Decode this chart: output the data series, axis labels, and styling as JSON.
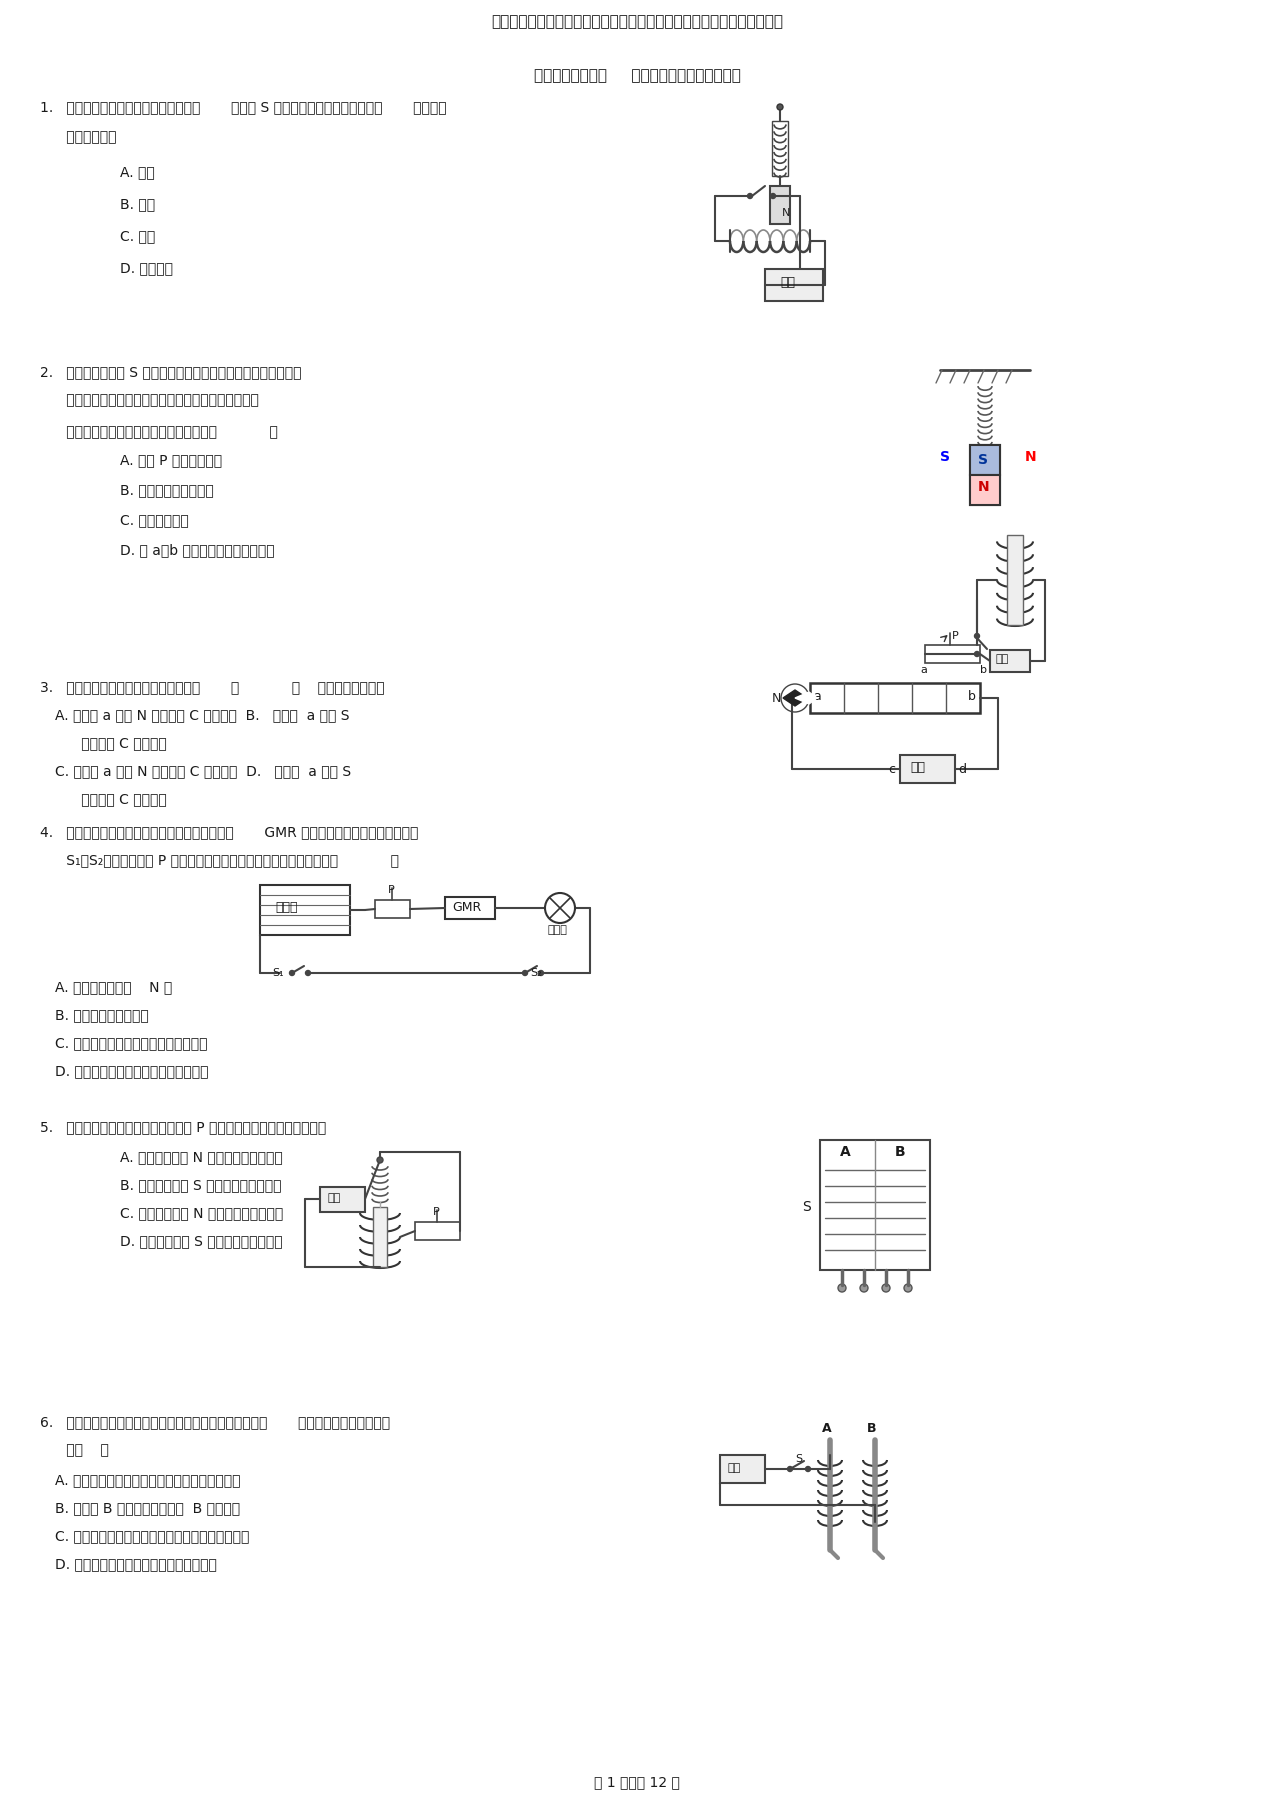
{
  "title": "江苏省苏科版初三物理下学期第十六章电磁转换汇编之安培定则相关习题",
  "subtitle": "第十六章电磁转换     汇编之安培定那么相关习题",
  "page_footer": "第 1 页，共 12 页",
  "bg_color": "#ffffff",
  "q1_line1": "1.   如图弹簧测力计下端吊一条形磁铁，       当开关 S 闭合时弹簧测力计示数变大，       那么电源",
  "q1_line2": "      的正极是（）",
  "q1_opts": [
    "A. 左端",
    "B. 右端",
    "C. 不变",
    "D. 无法判断"
  ],
  "q2_line1": "2.   如下图，上端为 S 极的条形磁体悬挂在一轻弹簧上。闭合开关",
  "q2_line2": "      条形磁体处于静止状态后，下端位于螺线管的上方。",
  "q2_line3": "      以下措施可以使条形磁体向上运动的是（            ）",
  "q2_opts": [
    "A. 滑片 P 向右缓慢移动",
    "B. 在螺线管中插入铁芯",
    "C. 增大电源电压",
    "D. 将 a、b 间电源的正负极对换位置"
  ],
  "q3_line1": "3.   通电螺旋管旁的小磁针静止如下图，       （            ）    判断正确的选项是",
  "q3_opts": [
    "A. 螺旋管 a 端为 N 极，电源 C 端为正极  B.   螺旋管  a 端为 S",
    "      极，电源 C 端为负极",
    "C. 螺旋管 a 端为 N 极，电源 C 端为负极  D.   螺旋管  a 端为 S",
    "      极，电源 C 端为正极"
  ],
  "q4_line1": "4.   如图是说明巨磁电阻特性的原理示意图，其中       GMR 是巨磁电阻。实验发现，当开关",
  "q4_line2": "      S₁、S₂均闭合且滑片 P 向左滑动的过程中，指示灯明显变亮。那么（            ）",
  "q4_opts": [
    "A. 电磁铁的右端为    N 极",
    "B. 流过灯泡的电流减小",
    "C. 巨磁电阻的阻值随磁场的增强而增大",
    "D. 巨磁电阻的阻值随磁场的增强而减小"
  ],
  "q5_line1": "5.   如下图，闭合电路开关后，将滑片 P 向左移动时弹簧缩短，那么（）",
  "q5_opts": [
    "A. 螺线管上端是 N 极，电源右端是正极",
    "B. 螺线管上端是 S 极，电源右端是正极",
    "C. 螺线管上端是 N 极，电源左端是正极",
    "D. 螺线管上端是 S 极，电源左端是正极"
  ],
  "q6_line1": "6.   某同学使用两个相同的大铁钉绕制成电磁铁进行实验，       如下图，以下说法正确的",
  "q6_line2": "      是（    ）",
  "q6_opts": [
    "A. 假设使电磁铁磁性增强，可向右移变阻器滑片",
    "B. 电磁铁 B 线圈匝数多，通过  B 的电流小",
    "C. 电磁铁能吸引的大头针越多，说明它的磁性越强",
    "D. 假设将两电磁铁上部靠近，会相互吸引"
  ]
}
